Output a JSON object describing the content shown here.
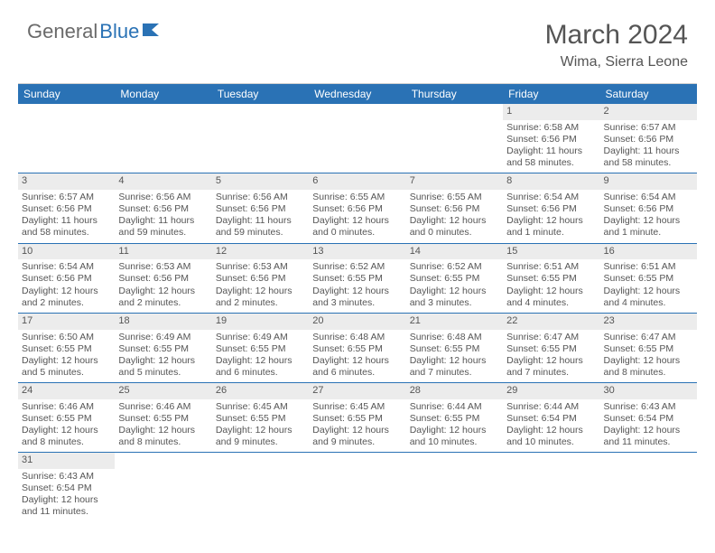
{
  "brand": {
    "part1": "General",
    "part2": "Blue"
  },
  "title": "March 2024",
  "subtitle": "Wima, Sierra Leone",
  "colors": {
    "header_bg": "#2a72b5",
    "header_text": "#ffffff",
    "daynum_bg": "#ececec",
    "text": "#555555",
    "row_border": "#2a72b5",
    "background": "#ffffff"
  },
  "fonts": {
    "title_size": 30,
    "subtitle_size": 16,
    "header_size": 12,
    "cell_size": 10.5
  },
  "dayNames": [
    "Sunday",
    "Monday",
    "Tuesday",
    "Wednesday",
    "Thursday",
    "Friday",
    "Saturday"
  ],
  "weeks": [
    [
      null,
      null,
      null,
      null,
      null,
      {
        "n": "1",
        "sunrise": "Sunrise: 6:58 AM",
        "sunset": "Sunset: 6:56 PM",
        "daylight": "Daylight: 11 hours and 58 minutes."
      },
      {
        "n": "2",
        "sunrise": "Sunrise: 6:57 AM",
        "sunset": "Sunset: 6:56 PM",
        "daylight": "Daylight: 11 hours and 58 minutes."
      }
    ],
    [
      {
        "n": "3",
        "sunrise": "Sunrise: 6:57 AM",
        "sunset": "Sunset: 6:56 PM",
        "daylight": "Daylight: 11 hours and 58 minutes."
      },
      {
        "n": "4",
        "sunrise": "Sunrise: 6:56 AM",
        "sunset": "Sunset: 6:56 PM",
        "daylight": "Daylight: 11 hours and 59 minutes."
      },
      {
        "n": "5",
        "sunrise": "Sunrise: 6:56 AM",
        "sunset": "Sunset: 6:56 PM",
        "daylight": "Daylight: 11 hours and 59 minutes."
      },
      {
        "n": "6",
        "sunrise": "Sunrise: 6:55 AM",
        "sunset": "Sunset: 6:56 PM",
        "daylight": "Daylight: 12 hours and 0 minutes."
      },
      {
        "n": "7",
        "sunrise": "Sunrise: 6:55 AM",
        "sunset": "Sunset: 6:56 PM",
        "daylight": "Daylight: 12 hours and 0 minutes."
      },
      {
        "n": "8",
        "sunrise": "Sunrise: 6:54 AM",
        "sunset": "Sunset: 6:56 PM",
        "daylight": "Daylight: 12 hours and 1 minute."
      },
      {
        "n": "9",
        "sunrise": "Sunrise: 6:54 AM",
        "sunset": "Sunset: 6:56 PM",
        "daylight": "Daylight: 12 hours and 1 minute."
      }
    ],
    [
      {
        "n": "10",
        "sunrise": "Sunrise: 6:54 AM",
        "sunset": "Sunset: 6:56 PM",
        "daylight": "Daylight: 12 hours and 2 minutes."
      },
      {
        "n": "11",
        "sunrise": "Sunrise: 6:53 AM",
        "sunset": "Sunset: 6:56 PM",
        "daylight": "Daylight: 12 hours and 2 minutes."
      },
      {
        "n": "12",
        "sunrise": "Sunrise: 6:53 AM",
        "sunset": "Sunset: 6:56 PM",
        "daylight": "Daylight: 12 hours and 2 minutes."
      },
      {
        "n": "13",
        "sunrise": "Sunrise: 6:52 AM",
        "sunset": "Sunset: 6:55 PM",
        "daylight": "Daylight: 12 hours and 3 minutes."
      },
      {
        "n": "14",
        "sunrise": "Sunrise: 6:52 AM",
        "sunset": "Sunset: 6:55 PM",
        "daylight": "Daylight: 12 hours and 3 minutes."
      },
      {
        "n": "15",
        "sunrise": "Sunrise: 6:51 AM",
        "sunset": "Sunset: 6:55 PM",
        "daylight": "Daylight: 12 hours and 4 minutes."
      },
      {
        "n": "16",
        "sunrise": "Sunrise: 6:51 AM",
        "sunset": "Sunset: 6:55 PM",
        "daylight": "Daylight: 12 hours and 4 minutes."
      }
    ],
    [
      {
        "n": "17",
        "sunrise": "Sunrise: 6:50 AM",
        "sunset": "Sunset: 6:55 PM",
        "daylight": "Daylight: 12 hours and 5 minutes."
      },
      {
        "n": "18",
        "sunrise": "Sunrise: 6:49 AM",
        "sunset": "Sunset: 6:55 PM",
        "daylight": "Daylight: 12 hours and 5 minutes."
      },
      {
        "n": "19",
        "sunrise": "Sunrise: 6:49 AM",
        "sunset": "Sunset: 6:55 PM",
        "daylight": "Daylight: 12 hours and 6 minutes."
      },
      {
        "n": "20",
        "sunrise": "Sunrise: 6:48 AM",
        "sunset": "Sunset: 6:55 PM",
        "daylight": "Daylight: 12 hours and 6 minutes."
      },
      {
        "n": "21",
        "sunrise": "Sunrise: 6:48 AM",
        "sunset": "Sunset: 6:55 PM",
        "daylight": "Daylight: 12 hours and 7 minutes."
      },
      {
        "n": "22",
        "sunrise": "Sunrise: 6:47 AM",
        "sunset": "Sunset: 6:55 PM",
        "daylight": "Daylight: 12 hours and 7 minutes."
      },
      {
        "n": "23",
        "sunrise": "Sunrise: 6:47 AM",
        "sunset": "Sunset: 6:55 PM",
        "daylight": "Daylight: 12 hours and 8 minutes."
      }
    ],
    [
      {
        "n": "24",
        "sunrise": "Sunrise: 6:46 AM",
        "sunset": "Sunset: 6:55 PM",
        "daylight": "Daylight: 12 hours and 8 minutes."
      },
      {
        "n": "25",
        "sunrise": "Sunrise: 6:46 AM",
        "sunset": "Sunset: 6:55 PM",
        "daylight": "Daylight: 12 hours and 8 minutes."
      },
      {
        "n": "26",
        "sunrise": "Sunrise: 6:45 AM",
        "sunset": "Sunset: 6:55 PM",
        "daylight": "Daylight: 12 hours and 9 minutes."
      },
      {
        "n": "27",
        "sunrise": "Sunrise: 6:45 AM",
        "sunset": "Sunset: 6:55 PM",
        "daylight": "Daylight: 12 hours and 9 minutes."
      },
      {
        "n": "28",
        "sunrise": "Sunrise: 6:44 AM",
        "sunset": "Sunset: 6:55 PM",
        "daylight": "Daylight: 12 hours and 10 minutes."
      },
      {
        "n": "29",
        "sunrise": "Sunrise: 6:44 AM",
        "sunset": "Sunset: 6:54 PM",
        "daylight": "Daylight: 12 hours and 10 minutes."
      },
      {
        "n": "30",
        "sunrise": "Sunrise: 6:43 AM",
        "sunset": "Sunset: 6:54 PM",
        "daylight": "Daylight: 12 hours and 11 minutes."
      }
    ],
    [
      {
        "n": "31",
        "sunrise": "Sunrise: 6:43 AM",
        "sunset": "Sunset: 6:54 PM",
        "daylight": "Daylight: 12 hours and 11 minutes."
      },
      null,
      null,
      null,
      null,
      null,
      null
    ]
  ]
}
